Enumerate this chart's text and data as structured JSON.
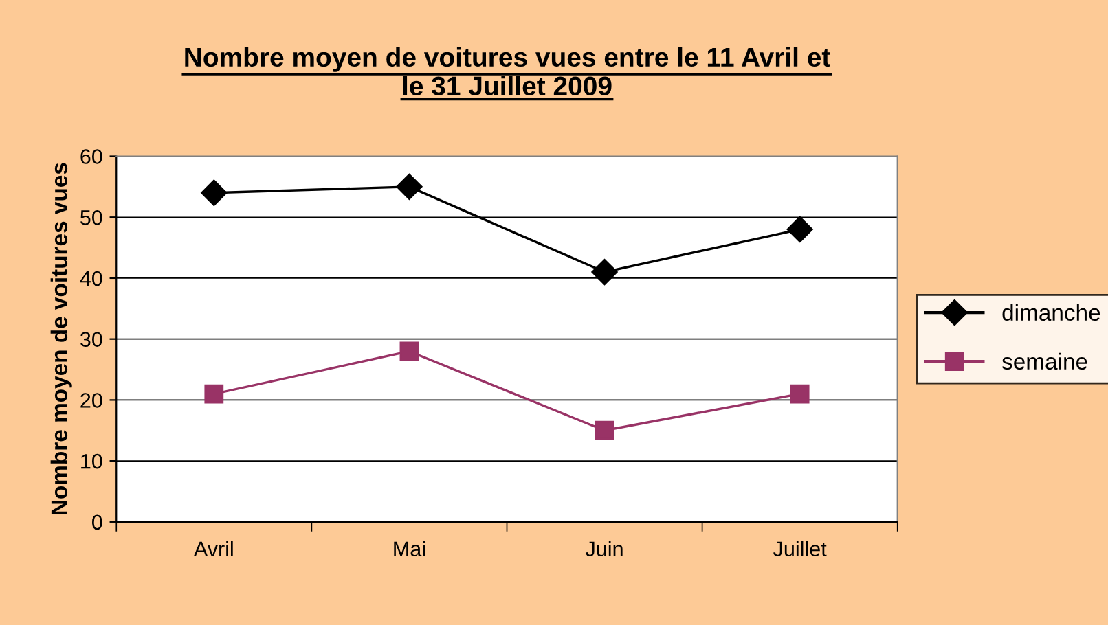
{
  "chart_data": {
    "type": "line",
    "title": "Nombre moyen de voitures vues entre le 11 Avril et\nle 31 Juillet 2009",
    "ylabel": "Nombre moyen de voitures vues",
    "categories": [
      "Avril",
      "Mai",
      "Juin",
      "Juillet"
    ],
    "series": [
      {
        "name": "dimanche",
        "color": "#000000",
        "marker": "diamond",
        "values": [
          54,
          55,
          41,
          48
        ]
      },
      {
        "name": "semaine",
        "color": "#993366",
        "marker": "square",
        "values": [
          21,
          28,
          15,
          21
        ]
      }
    ],
    "ylim": [
      0,
      60
    ],
    "yticks": [
      0,
      10,
      20,
      30,
      40,
      50,
      60
    ],
    "grid": "y",
    "legend": "right",
    "line_style": "solid"
  }
}
